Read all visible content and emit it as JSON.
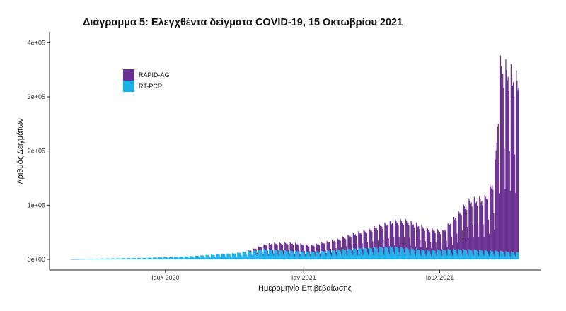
{
  "chart_data": {
    "type": "bar",
    "stacked": true,
    "title": "Διάγραμμα 5: Ελεγχθέντα δείγματα COVID-19, 15 Οκτωβρίου 2021",
    "xlabel": "Ημερομηνία Επιβεβαίωσης",
    "ylabel": "Αριθμός Δειγμάτων",
    "x_range": [
      "2020-02-26",
      "2021-10-14"
    ],
    "ylim": [
      0,
      420000
    ],
    "y_ticks": [
      0,
      100000,
      200000,
      300000,
      400000
    ],
    "y_tick_labels": [
      "0e+00",
      "1e+05",
      "2e+05",
      "3e+05",
      "4e+05"
    ],
    "x_ticks": [
      {
        "date": "2020-07-01",
        "label": "Ιουλ 2020"
      },
      {
        "date": "2021-01-01",
        "label": "Ιαν 2021"
      },
      {
        "date": "2021-07-01",
        "label": "Ιουλ 2021"
      }
    ],
    "grid": false,
    "legend_position": "top-left",
    "weekly_pattern": {
      "description": "values shown are weekday maxima; weekends lower",
      "weekend_factor": [
        0.55,
        0.35
      ],
      "weekday_factor": [
        1.0,
        0.95,
        0.9,
        0.92,
        0.85
      ]
    },
    "series": [
      {
        "name": "RAPID-AG",
        "color": "#6a2f90",
        "keypoints": [
          {
            "date": "2020-02-26",
            "value": 0
          },
          {
            "date": "2020-10-15",
            "value": 0
          },
          {
            "date": "2020-11-01",
            "value": 5000
          },
          {
            "date": "2020-11-20",
            "value": 12000
          },
          {
            "date": "2020-12-15",
            "value": 15000
          },
          {
            "date": "2021-01-10",
            "value": 12000
          },
          {
            "date": "2021-02-15",
            "value": 20000
          },
          {
            "date": "2021-03-15",
            "value": 30000
          },
          {
            "date": "2021-04-10",
            "value": 40000
          },
          {
            "date": "2021-05-05",
            "value": 50000
          },
          {
            "date": "2021-05-20",
            "value": 52000
          },
          {
            "date": "2021-06-15",
            "value": 42000
          },
          {
            "date": "2021-07-05",
            "value": 35000
          },
          {
            "date": "2021-07-20",
            "value": 60000
          },
          {
            "date": "2021-08-10",
            "value": 95000
          },
          {
            "date": "2021-08-30",
            "value": 100000
          },
          {
            "date": "2021-09-12",
            "value": 140000
          },
          {
            "date": "2021-09-20",
            "value": 360000
          },
          {
            "date": "2021-10-01",
            "value": 350000
          },
          {
            "date": "2021-10-14",
            "value": 330000
          }
        ]
      },
      {
        "name": "RT-PCR",
        "color": "#1ab0ea",
        "keypoints": [
          {
            "date": "2020-02-26",
            "value": 0
          },
          {
            "date": "2020-04-01",
            "value": 1500
          },
          {
            "date": "2020-06-01",
            "value": 3000
          },
          {
            "date": "2020-08-01",
            "value": 6000
          },
          {
            "date": "2020-10-01",
            "value": 12000
          },
          {
            "date": "2020-11-10",
            "value": 20000
          },
          {
            "date": "2020-12-15",
            "value": 17000
          },
          {
            "date": "2021-01-15",
            "value": 15000
          },
          {
            "date": "2021-03-15",
            "value": 22000
          },
          {
            "date": "2021-05-01",
            "value": 25000
          },
          {
            "date": "2021-06-15",
            "value": 18000
          },
          {
            "date": "2021-07-20",
            "value": 20000
          },
          {
            "date": "2021-09-01",
            "value": 18000
          },
          {
            "date": "2021-10-14",
            "value": 14000
          }
        ]
      }
    ]
  }
}
